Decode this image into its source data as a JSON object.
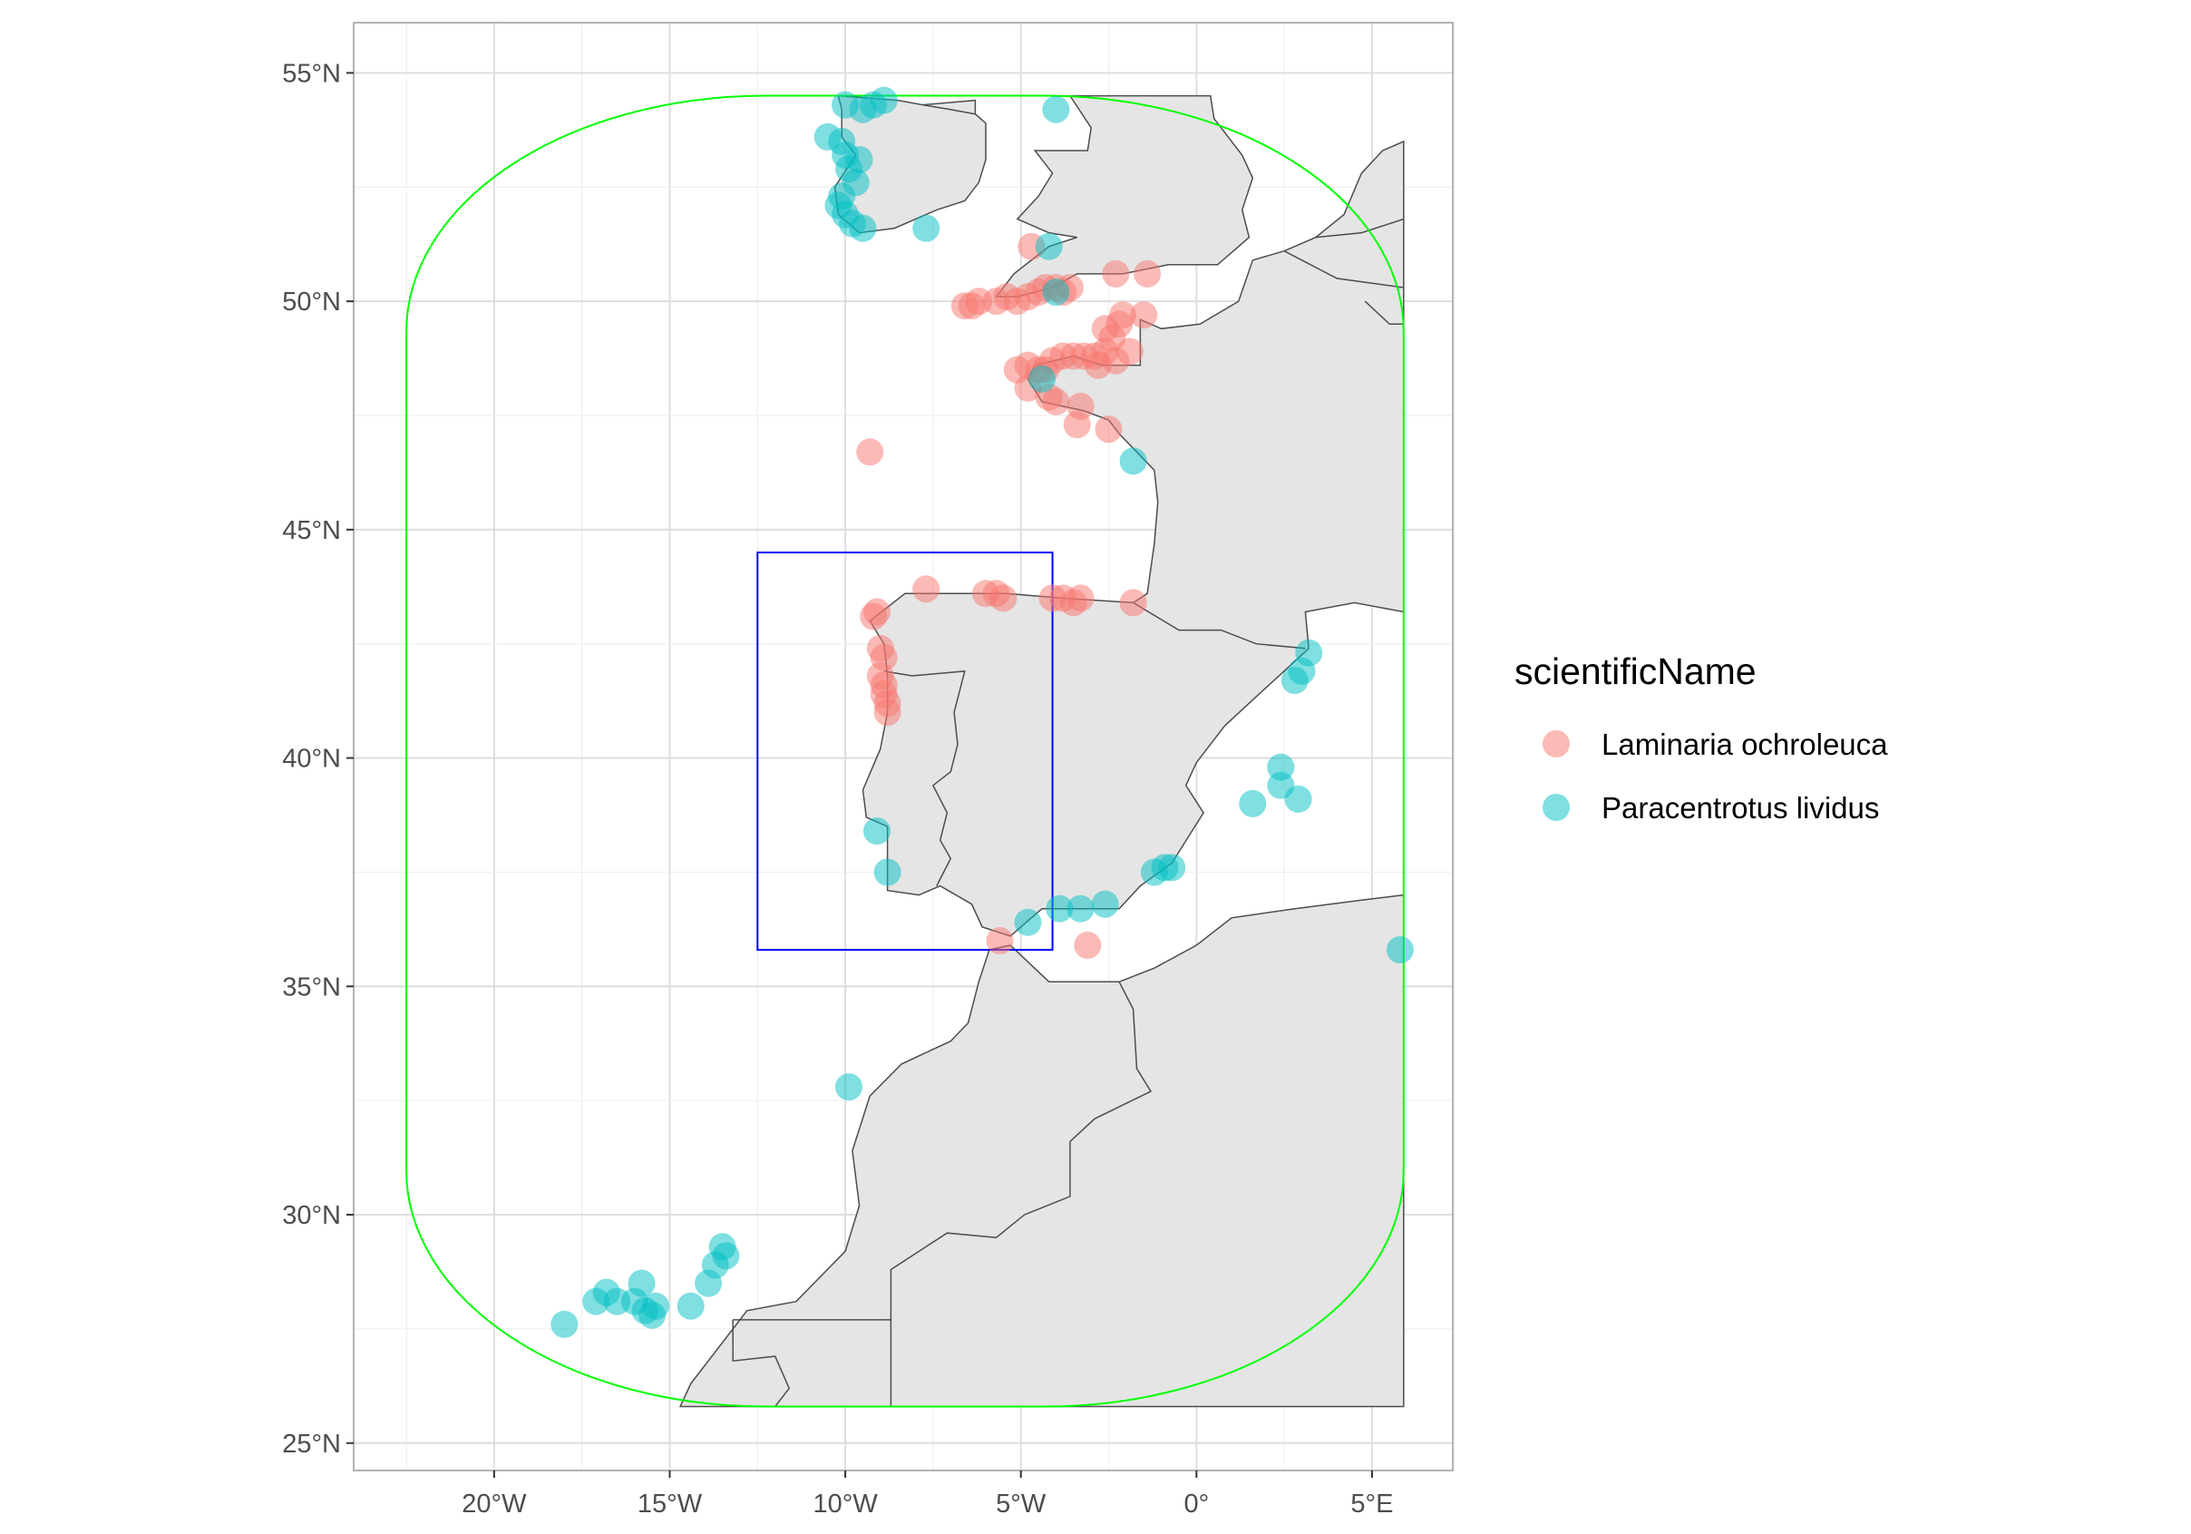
{
  "chart_data": {
    "type": "scatter",
    "map": true,
    "projection": "plate-carree",
    "xlim": [
      -24,
      7.3
    ],
    "ylim": [
      24.4,
      56.1
    ],
    "x_ticks": [
      -20,
      -15,
      -10,
      -5,
      0,
      5
    ],
    "x_tick_labels": [
      "20°W",
      "15°W",
      "10°W",
      "5°W",
      "0°",
      "5°E"
    ],
    "y_ticks": [
      25,
      30,
      35,
      40,
      45,
      50,
      55
    ],
    "y_tick_labels": [
      "25°N",
      "30°N",
      "35°N",
      "40°N",
      "45°N",
      "50°N",
      "55°N"
    ],
    "grid": true,
    "legend": {
      "title": "scientificName",
      "position": "right",
      "entries": [
        {
          "label": "Laminaria ochroleuca",
          "color": "#F8766D"
        },
        {
          "label": "Paracentrotus lividus",
          "color": "#00BFC4"
        }
      ]
    },
    "colors": {
      "land_fill": "#e5e5e5",
      "border": "#4d4d4d",
      "buffer_outline": "#00ff00",
      "bbox_outline": "#0000ff",
      "panel_border": "#999999"
    },
    "bbox_rectangle": {
      "lon": [
        -12.5,
        -4.1
      ],
      "lat": [
        35.8,
        44.5
      ]
    },
    "buffer_zone": {
      "lon": [
        -22.5,
        5.9
      ],
      "lat": [
        25.8,
        54.5
      ]
    },
    "land_polygons": [
      [
        [
          -10.2,
          54.5
        ],
        [
          -8.5,
          54.4
        ],
        [
          -7.8,
          54.3
        ],
        [
          -6.3,
          54.4
        ],
        [
          -6.3,
          54.1
        ],
        [
          -6.0,
          53.9
        ],
        [
          -6.0,
          53.1
        ],
        [
          -6.2,
          52.6
        ],
        [
          -6.6,
          52.2
        ],
        [
          -7.4,
          52.0
        ],
        [
          -8.6,
          51.6
        ],
        [
          -9.6,
          51.5
        ],
        [
          -10.2,
          51.9
        ],
        [
          -10.3,
          52.5
        ],
        [
          -9.7,
          53.2
        ],
        [
          -10.1,
          53.6
        ],
        [
          -10.1,
          54.2
        ]
      ],
      [
        [
          -5.2,
          54.5
        ],
        [
          0.4,
          54.5
        ],
        [
          0.5,
          54.0
        ],
        [
          1.3,
          53.2
        ],
        [
          1.6,
          52.7
        ],
        [
          1.3,
          52.0
        ],
        [
          1.5,
          51.4
        ],
        [
          0.6,
          50.8
        ],
        [
          -0.8,
          50.8
        ],
        [
          -2.1,
          50.6
        ],
        [
          -3.4,
          50.6
        ],
        [
          -4.1,
          50.3
        ],
        [
          -5.1,
          50.1
        ],
        [
          -5.7,
          50.1
        ],
        [
          -5.2,
          50.6
        ],
        [
          -4.2,
          51.2
        ],
        [
          -3.4,
          51.4
        ],
        [
          -4.2,
          51.5
        ],
        [
          -5.1,
          51.8
        ],
        [
          -4.5,
          52.3
        ],
        [
          -4.1,
          52.8
        ],
        [
          -4.6,
          53.3
        ],
        [
          -3.1,
          53.3
        ],
        [
          -3.0,
          53.8
        ],
        [
          -3.6,
          54.5
        ]
      ],
      [
        [
          5.9,
          53.5
        ],
        [
          5.9,
          43.2
        ],
        [
          4.5,
          43.4
        ],
        [
          3.1,
          43.2
        ],
        [
          3.2,
          42.4
        ],
        [
          1.5,
          41.2
        ],
        [
          0.8,
          40.7
        ],
        [
          0.0,
          39.9
        ],
        [
          -0.3,
          39.4
        ],
        [
          0.2,
          38.8
        ],
        [
          -0.7,
          37.7
        ],
        [
          -1.6,
          37.2
        ],
        [
          -2.2,
          36.7
        ],
        [
          -4.4,
          36.7
        ],
        [
          -5.3,
          36.1
        ],
        [
          -6.1,
          36.3
        ],
        [
          -6.4,
          36.8
        ],
        [
          -7.3,
          37.2
        ],
        [
          -7.9,
          37.0
        ],
        [
          -8.8,
          37.1
        ],
        [
          -8.8,
          37.8
        ],
        [
          -8.8,
          38.5
        ],
        [
          -9.4,
          38.7
        ],
        [
          -9.5,
          39.3
        ],
        [
          -9.0,
          40.2
        ],
        [
          -8.8,
          41.0
        ],
        [
          -8.8,
          41.8
        ],
        [
          -8.9,
          42.5
        ],
        [
          -9.3,
          43.0
        ],
        [
          -8.3,
          43.6
        ],
        [
          -7.0,
          43.6
        ],
        [
          -5.4,
          43.6
        ],
        [
          -3.8,
          43.5
        ],
        [
          -1.8,
          43.4
        ],
        [
          -1.4,
          43.6
        ],
        [
          -1.2,
          44.7
        ],
        [
          -1.1,
          45.6
        ],
        [
          -1.2,
          46.3
        ],
        [
          -2.2,
          47.1
        ],
        [
          -2.5,
          47.4
        ],
        [
          -3.2,
          47.6
        ],
        [
          -4.4,
          47.8
        ],
        [
          -4.8,
          48.3
        ],
        [
          -4.6,
          48.6
        ],
        [
          -3.5,
          48.8
        ],
        [
          -2.7,
          48.6
        ],
        [
          -1.6,
          48.6
        ],
        [
          -1.6,
          49.6
        ],
        [
          -1.0,
          49.4
        ],
        [
          0.1,
          49.5
        ],
        [
          1.2,
          50.0
        ],
        [
          1.6,
          50.9
        ],
        [
          2.5,
          51.1
        ],
        [
          3.4,
          51.4
        ],
        [
          4.2,
          51.9
        ],
        [
          4.7,
          52.8
        ],
        [
          5.3,
          53.3
        ]
      ],
      [
        [
          -5.9,
          35.8
        ],
        [
          -5.3,
          35.9
        ],
        [
          -4.2,
          35.1
        ],
        [
          -2.2,
          35.1
        ],
        [
          -1.2,
          35.4
        ],
        [
          0.0,
          35.9
        ],
        [
          1.0,
          36.5
        ],
        [
          2.8,
          36.7
        ],
        [
          4.8,
          36.9
        ],
        [
          5.9,
          37.0
        ],
        [
          5.9,
          25.8
        ],
        [
          -14.7,
          25.8
        ],
        [
          -14.4,
          26.3
        ],
        [
          -13.5,
          27.2
        ],
        [
          -12.8,
          27.9
        ],
        [
          -11.4,
          28.1
        ],
        [
          -10.0,
          29.2
        ],
        [
          -9.6,
          30.2
        ],
        [
          -9.8,
          31.4
        ],
        [
          -9.3,
          32.6
        ],
        [
          -8.4,
          33.3
        ],
        [
          -7.0,
          33.8
        ],
        [
          -6.5,
          34.2
        ],
        [
          -6.2,
          35.1
        ]
      ]
    ],
    "series": [
      {
        "name": "Laminaria ochroleuca",
        "color": "#F8766D",
        "points": [
          [
            -9.3,
            46.7
          ],
          [
            -4.7,
            51.2
          ],
          [
            -2.3,
            50.6
          ],
          [
            -1.4,
            50.6
          ],
          [
            -6.6,
            49.9
          ],
          [
            -6.4,
            49.9
          ],
          [
            -6.2,
            50.0
          ],
          [
            -5.7,
            50.0
          ],
          [
            -5.4,
            50.1
          ],
          [
            -5.1,
            50.0
          ],
          [
            -4.8,
            50.1
          ],
          [
            -4.5,
            50.2
          ],
          [
            -4.3,
            50.3
          ],
          [
            -4.0,
            50.3
          ],
          [
            -3.8,
            50.2
          ],
          [
            -3.6,
            50.3
          ],
          [
            -5.1,
            48.5
          ],
          [
            -4.8,
            48.6
          ],
          [
            -4.5,
            48.5
          ],
          [
            -4.3,
            48.5
          ],
          [
            -4.1,
            48.7
          ],
          [
            -3.8,
            48.8
          ],
          [
            -3.5,
            48.8
          ],
          [
            -3.2,
            48.8
          ],
          [
            -2.9,
            48.8
          ],
          [
            -2.6,
            48.9
          ],
          [
            -2.4,
            49.2
          ],
          [
            -2.2,
            49.5
          ],
          [
            -2.1,
            49.7
          ],
          [
            -2.3,
            48.7
          ],
          [
            -1.9,
            48.9
          ],
          [
            -1.5,
            49.7
          ],
          [
            -2.6,
            49.4
          ],
          [
            -4.8,
            48.1
          ],
          [
            -4.2,
            47.9
          ],
          [
            -4.0,
            47.8
          ],
          [
            -3.3,
            47.7
          ],
          [
            -3.4,
            47.3
          ],
          [
            -2.5,
            47.2
          ],
          [
            -2.8,
            48.6
          ],
          [
            -7.7,
            43.7
          ],
          [
            -6.0,
            43.6
          ],
          [
            -5.7,
            43.6
          ],
          [
            -5.5,
            43.5
          ],
          [
            -4.1,
            43.5
          ],
          [
            -3.8,
            43.5
          ],
          [
            -3.5,
            43.4
          ],
          [
            -3.3,
            43.5
          ],
          [
            -1.8,
            43.4
          ],
          [
            -9.2,
            43.1
          ],
          [
            -9.1,
            43.2
          ],
          [
            -9.0,
            42.4
          ],
          [
            -8.9,
            42.2
          ],
          [
            -9.0,
            41.8
          ],
          [
            -8.9,
            41.6
          ],
          [
            -8.9,
            41.4
          ],
          [
            -8.8,
            41.2
          ],
          [
            -8.8,
            41.0
          ],
          [
            -5.6,
            36.0
          ],
          [
            -3.1,
            35.9
          ]
        ]
      },
      {
        "name": "Paracentrotus lividus",
        "color": "#00BFC4",
        "points": [
          [
            -10.0,
            54.3
          ],
          [
            -9.5,
            54.2
          ],
          [
            -9.2,
            54.3
          ],
          [
            -8.9,
            54.4
          ],
          [
            -4.0,
            54.2
          ],
          [
            -10.5,
            53.6
          ],
          [
            -10.1,
            53.5
          ],
          [
            -10.0,
            53.2
          ],
          [
            -9.6,
            53.1
          ],
          [
            -9.9,
            52.9
          ],
          [
            -9.7,
            52.6
          ],
          [
            -10.1,
            52.3
          ],
          [
            -10.2,
            52.1
          ],
          [
            -10.0,
            51.9
          ],
          [
            -9.8,
            51.7
          ],
          [
            -9.5,
            51.6
          ],
          [
            -7.7,
            51.6
          ],
          [
            -4.2,
            51.2
          ],
          [
            -4.0,
            50.2
          ],
          [
            -4.4,
            48.3
          ],
          [
            -1.8,
            46.5
          ],
          [
            3.2,
            42.3
          ],
          [
            3.0,
            41.9
          ],
          [
            2.8,
            41.7
          ],
          [
            2.4,
            39.8
          ],
          [
            2.4,
            39.4
          ],
          [
            1.6,
            39.0
          ],
          [
            2.9,
            39.1
          ],
          [
            -9.1,
            38.4
          ],
          [
            -8.8,
            37.5
          ],
          [
            -4.8,
            36.4
          ],
          [
            -3.9,
            36.7
          ],
          [
            -3.3,
            36.7
          ],
          [
            -2.6,
            36.8
          ],
          [
            -1.2,
            37.5
          ],
          [
            -0.9,
            37.6
          ],
          [
            -0.7,
            37.6
          ],
          [
            5.8,
            35.8
          ],
          [
            -9.9,
            32.8
          ],
          [
            -18.0,
            27.6
          ],
          [
            -17.1,
            28.1
          ],
          [
            -16.8,
            28.3
          ],
          [
            -16.5,
            28.1
          ],
          [
            -16.0,
            28.1
          ],
          [
            -15.8,
            28.5
          ],
          [
            -15.7,
            27.9
          ],
          [
            -15.5,
            27.8
          ],
          [
            -15.4,
            28.0
          ],
          [
            -14.4,
            28.0
          ],
          [
            -13.9,
            28.5
          ],
          [
            -13.7,
            28.9
          ],
          [
            -13.5,
            29.3
          ],
          [
            -13.4,
            29.1
          ]
        ]
      }
    ]
  }
}
